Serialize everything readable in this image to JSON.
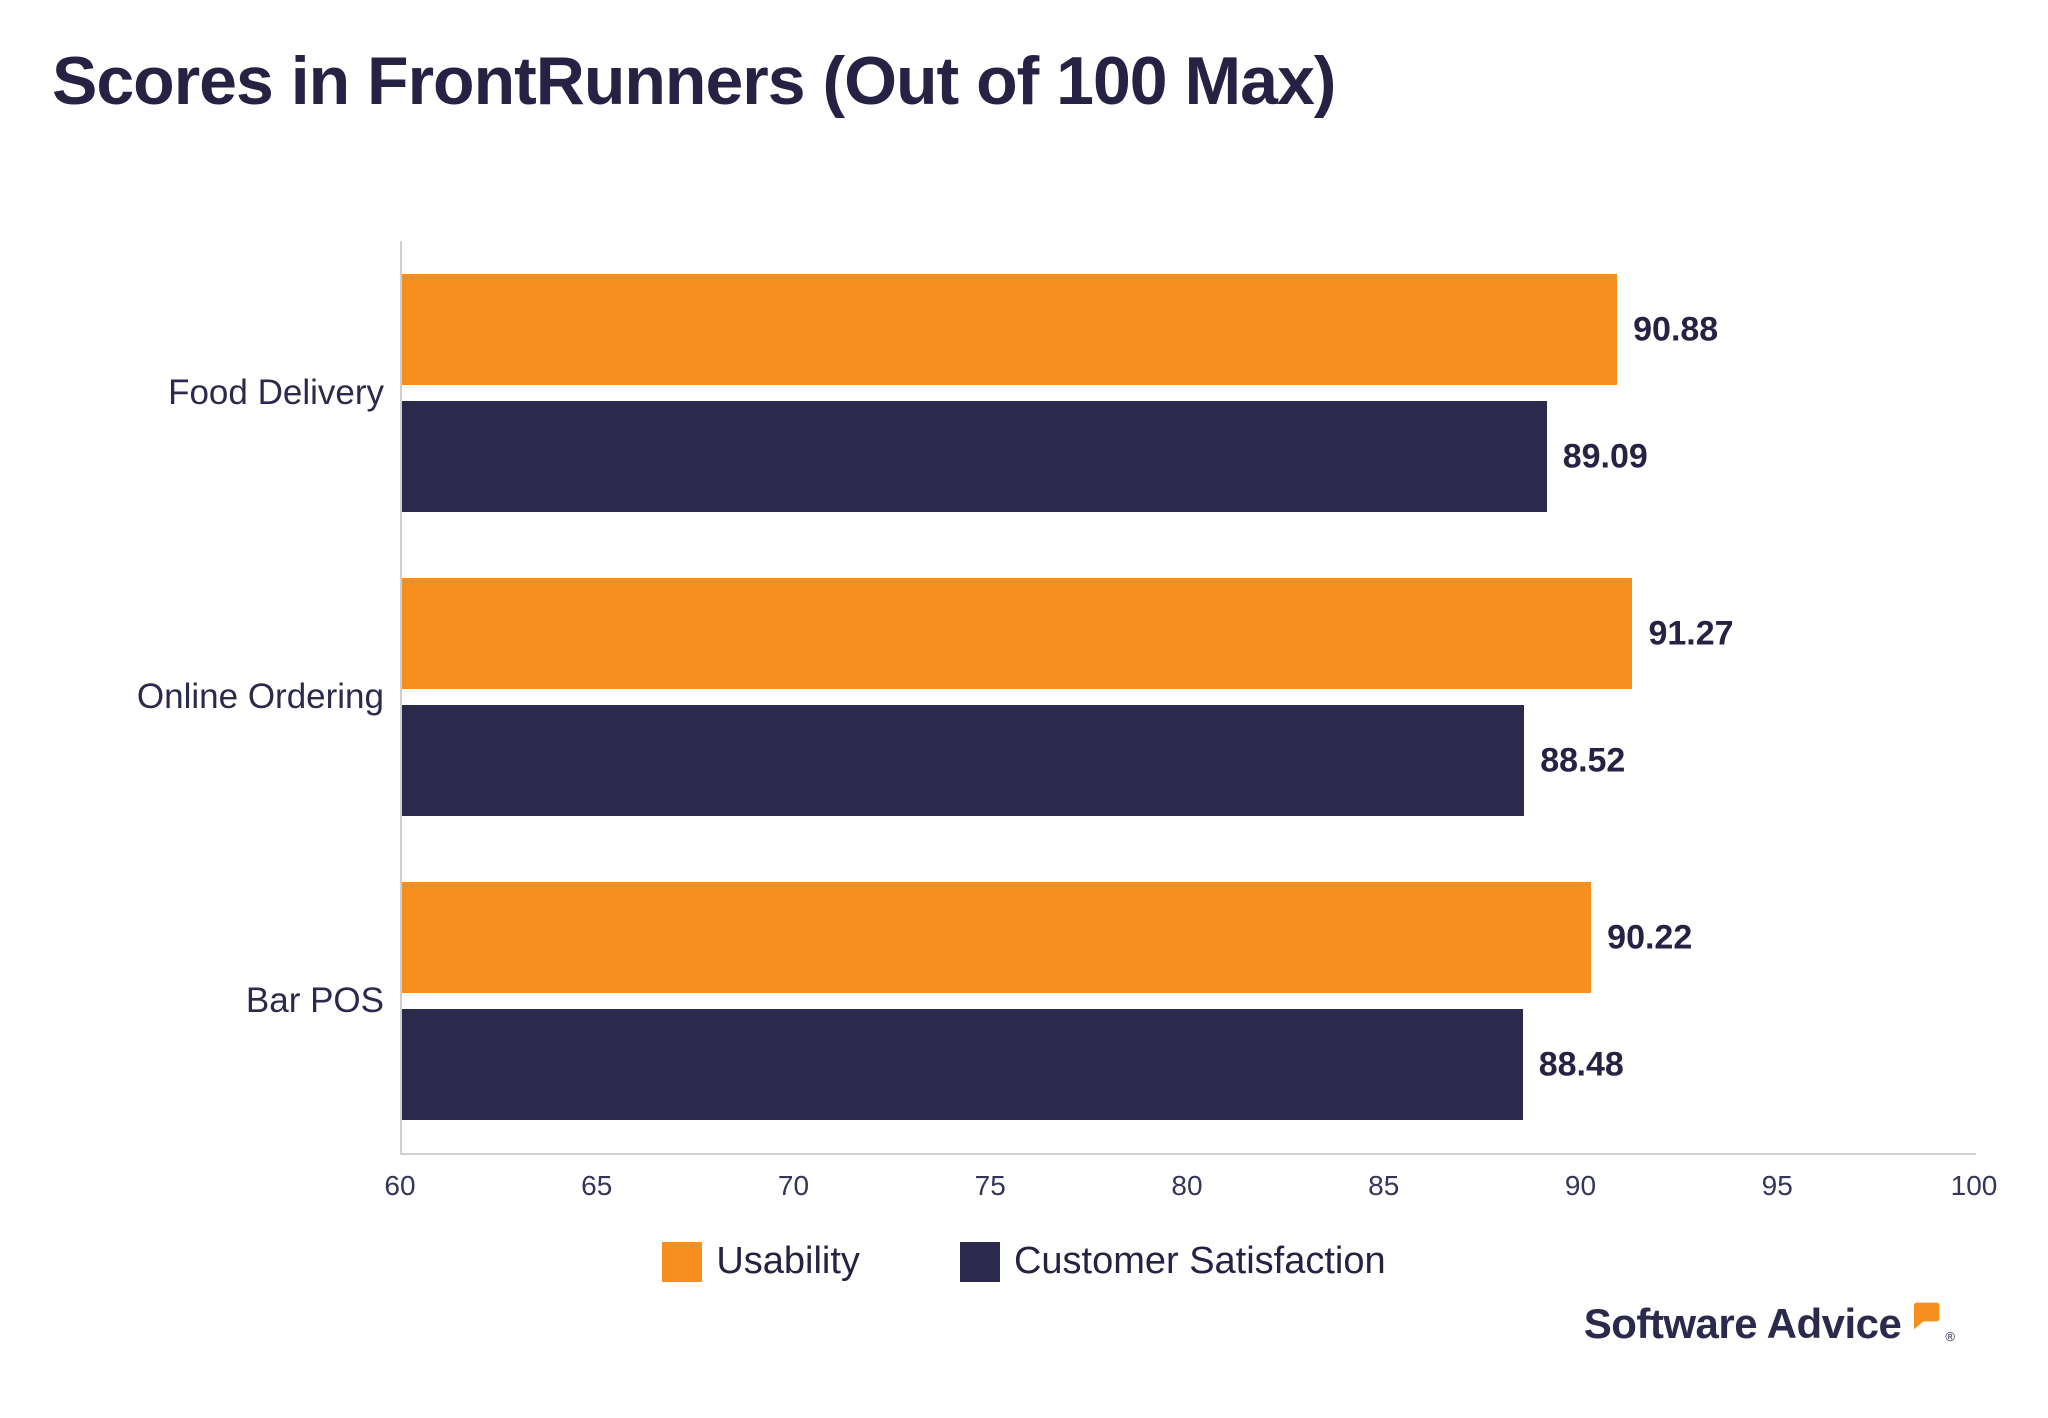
{
  "title": "Scores in FrontRunners (Out of 100 Max)",
  "chart_data": {
    "type": "bar",
    "orientation": "horizontal",
    "title": "Scores in FrontRunners (Out of 100 Max)",
    "categories": [
      "Food Delivery",
      "Online Ordering",
      "Bar POS"
    ],
    "series": [
      {
        "name": "Usability",
        "color": "#F78F1E",
        "values": [
          90.88,
          91.27,
          90.22
        ]
      },
      {
        "name": "Customer Satisfaction",
        "color": "#2B2A4C",
        "values": [
          89.09,
          88.52,
          88.48
        ]
      }
    ],
    "xlim": [
      60,
      100
    ],
    "x_ticks": [
      60,
      65,
      70,
      75,
      80,
      85,
      90,
      95,
      100
    ],
    "value_labels": true,
    "grid": false,
    "legend_position": "bottom"
  },
  "branding": {
    "logo_text": "Software Advice",
    "registered_mark": "®",
    "logo_mark": "speech-bubble-icon",
    "accent_color": "#F78F1E",
    "navy_color": "#2B2A4C"
  }
}
